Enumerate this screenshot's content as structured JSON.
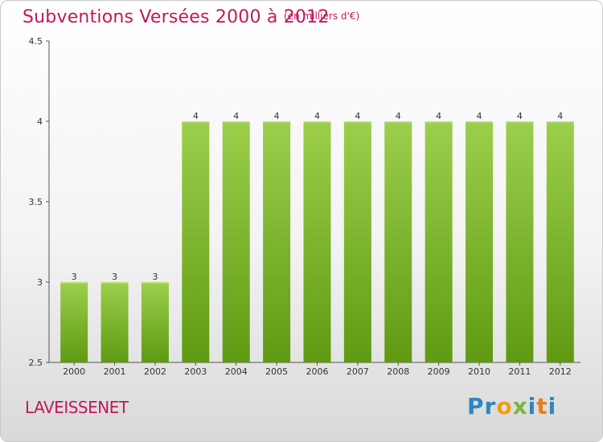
{
  "title": "Subventions Versées 2000 à 2012",
  "subtitle": "(en milliers d'€)",
  "commune": "LAVEISSENET",
  "logo": {
    "letters": [
      "P",
      "r",
      "o",
      "x",
      "i",
      "t",
      "i"
    ]
  },
  "colors": {
    "title": "#c2185b",
    "bar_light": "#9ccf4c",
    "bar_dark": "#5f9a12"
  },
  "chart_data": {
    "type": "bar",
    "categories": [
      "2000",
      "2001",
      "2002",
      "2003",
      "2004",
      "2005",
      "2006",
      "2007",
      "2008",
      "2009",
      "2010",
      "2011",
      "2012"
    ],
    "values": [
      3,
      3,
      3,
      4,
      4,
      4,
      4,
      4,
      4,
      4,
      4,
      4,
      4
    ],
    "data_labels": [
      "3",
      "3",
      "3",
      "4",
      "4",
      "4",
      "4",
      "4",
      "4",
      "4",
      "4",
      "4",
      "4"
    ],
    "ylim": [
      2.5,
      4.5
    ],
    "yticks": [
      2.5,
      3,
      3.5,
      4,
      4.5
    ],
    "ytick_labels": [
      "2.5",
      "3",
      "3.5",
      "4",
      "4.5"
    ],
    "title": "Subventions Versées 2000 à 2012",
    "xlabel": "",
    "ylabel": "",
    "grid": false,
    "legend": "none"
  }
}
